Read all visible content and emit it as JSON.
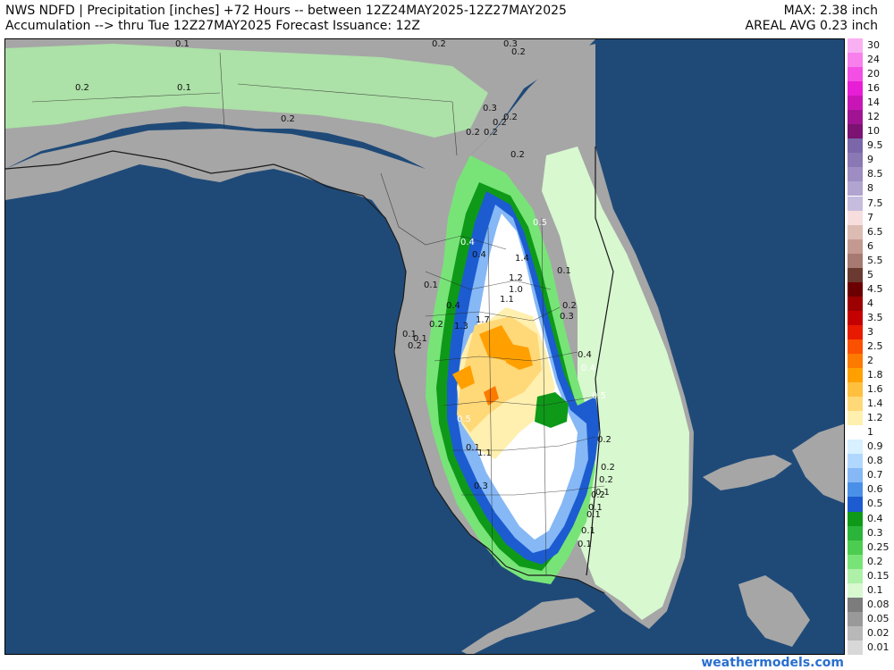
{
  "header": {
    "line1_left": "NWS NDFD | Precipitation [inches] +72 Hours -- between 12Z24MAY2025-12Z27MAY2025",
    "line2_left": "Accumulation --> thru Tue 12Z27MAY2025   Forecast Issuance: 12Z",
    "line1_right": "MAX: 2.38 inch",
    "line2_right": "AREAL AVG 0.23 inch"
  },
  "legend": {
    "items": [
      {
        "label": "30",
        "color": "#f9b0f2"
      },
      {
        "label": "24",
        "color": "#f880ec"
      },
      {
        "label": "20",
        "color": "#f34fe4"
      },
      {
        "label": "16",
        "color": "#e81ed6"
      },
      {
        "label": "14",
        "color": "#c816b6"
      },
      {
        "label": "12",
        "color": "#a01494"
      },
      {
        "label": "10",
        "color": "#7c1272"
      },
      {
        "label": "9.5",
        "color": "#7a66a8"
      },
      {
        "label": "9",
        "color": "#8a78b4"
      },
      {
        "label": "8.5",
        "color": "#9d8dc2"
      },
      {
        "label": "8",
        "color": "#b1a4d0"
      },
      {
        "label": "7.5",
        "color": "#c6bcde"
      },
      {
        "label": "7",
        "color": "#f6dede"
      },
      {
        "label": "6.5",
        "color": "#dcbcb2"
      },
      {
        "label": "6",
        "color": "#c49a90"
      },
      {
        "label": "5.5",
        "color": "#a67a70"
      },
      {
        "label": "5",
        "color": "#6a3a30"
      },
      {
        "label": "4.5",
        "color": "#6c0000"
      },
      {
        "label": "4",
        "color": "#9c0000"
      },
      {
        "label": "3.5",
        "color": "#c40000"
      },
      {
        "label": "3",
        "color": "#e81a00"
      },
      {
        "label": "2.5",
        "color": "#fb5000"
      },
      {
        "label": "2",
        "color": "#fd7a00"
      },
      {
        "label": "1.8",
        "color": "#ffa000"
      },
      {
        "label": "1.6",
        "color": "#ffc040"
      },
      {
        "label": "1.4",
        "color": "#ffd878"
      },
      {
        "label": "1.2",
        "color": "#fff0b0"
      },
      {
        "label": "1",
        "color": "#ffffff"
      },
      {
        "label": "0.9",
        "color": "#d8f0ff"
      },
      {
        "label": "0.8",
        "color": "#b0d8ff"
      },
      {
        "label": "0.7",
        "color": "#86b8f6"
      },
      {
        "label": "0.6",
        "color": "#4a90e8"
      },
      {
        "label": "0.5",
        "color": "#1c5cd0"
      },
      {
        "label": "0.4",
        "color": "#0e9a18"
      },
      {
        "label": "0.3",
        "color": "#2ab43a"
      },
      {
        "label": "0.25",
        "color": "#4ccc50"
      },
      {
        "label": "0.2",
        "color": "#78e478"
      },
      {
        "label": "0.15",
        "color": "#aef0a8"
      },
      {
        "label": "0.1",
        "color": "#d8f8d0"
      },
      {
        "label": "0.08",
        "color": "#7c7c7c"
      },
      {
        "label": "0.05",
        "color": "#999999"
      },
      {
        "label": "0.02",
        "color": "#b8b8b8"
      },
      {
        "label": "0.01",
        "color": "#d8d8d8"
      }
    ]
  },
  "map_colors": {
    "ocean": "#1f4a78",
    "land_gray": "#a6a6a6",
    "land_dark": "#858585",
    "border": "#1a1a1a"
  },
  "map_labels": [
    {
      "text": "0.1"
    },
    {
      "text": "0.2"
    },
    {
      "text": "0.3"
    },
    {
      "text": "0.2"
    },
    {
      "text": "0.1"
    },
    {
      "text": "0.2"
    },
    {
      "text": "0.2"
    },
    {
      "text": "0.3"
    },
    {
      "text": "0.2"
    },
    {
      "text": "0.2"
    },
    {
      "text": "0.2"
    },
    {
      "text": "0.2"
    },
    {
      "text": "0.2"
    },
    {
      "text": "0.5"
    },
    {
      "text": "0.4"
    },
    {
      "text": "0.4"
    },
    {
      "text": "1.4"
    },
    {
      "text": "0.1"
    },
    {
      "text": "1.2"
    },
    {
      "text": "1.0"
    },
    {
      "text": "0.1"
    },
    {
      "text": "1.1"
    },
    {
      "text": "0.4"
    },
    {
      "text": "0.2"
    },
    {
      "text": "0.3"
    },
    {
      "text": "1.7"
    },
    {
      "text": "0.2"
    },
    {
      "text": "1.3"
    },
    {
      "text": "0.1"
    },
    {
      "text": "0.1"
    },
    {
      "text": "0.2"
    },
    {
      "text": "0.4"
    },
    {
      "text": "0.4"
    },
    {
      "text": "0.5"
    },
    {
      "text": "0.5"
    },
    {
      "text": "0.2"
    },
    {
      "text": "0.1"
    },
    {
      "text": "1.1"
    },
    {
      "text": "0.2"
    },
    {
      "text": "0.2"
    },
    {
      "text": "0.3"
    },
    {
      "text": "0.2"
    },
    {
      "text": "0.1"
    },
    {
      "text": "0.1"
    },
    {
      "text": "0.1"
    },
    {
      "text": "0.1"
    },
    {
      "text": "0.1"
    }
  ],
  "credit": "weathermodels.com"
}
